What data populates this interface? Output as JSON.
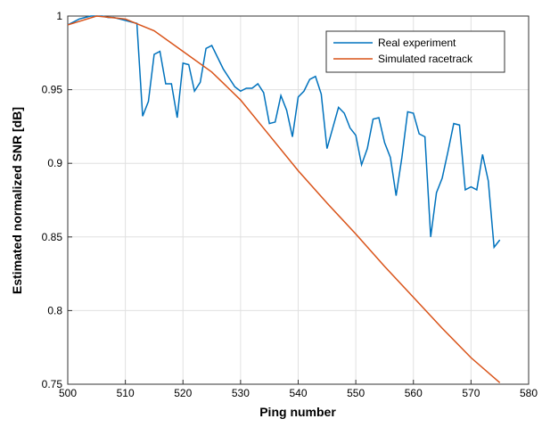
{
  "chart_data": {
    "type": "line",
    "xlabel": "Ping number",
    "ylabel": "Estimated normalized SNR [dB]",
    "xlim": [
      500,
      580
    ],
    "ylim": [
      0.75,
      1
    ],
    "xticks": [
      500,
      510,
      520,
      530,
      540,
      550,
      560,
      570,
      580
    ],
    "yticks": [
      0.75,
      0.8,
      0.85,
      0.9,
      0.95,
      1
    ],
    "grid": true,
    "legend": "upper right",
    "series": [
      {
        "name": "Real experiment",
        "color": "#0072bd",
        "x": [
          500,
          501,
          502,
          503,
          504,
          505,
          506,
          507,
          508,
          509,
          510,
          511,
          512,
          513,
          514,
          515,
          516,
          517,
          518,
          519,
          520,
          521,
          522,
          523,
          524,
          525,
          526,
          527,
          528,
          529,
          530,
          531,
          532,
          533,
          534,
          535,
          536,
          537,
          538,
          539,
          540,
          541,
          542,
          543,
          544,
          545,
          546,
          547,
          548,
          549,
          550,
          551,
          552,
          553,
          554,
          555,
          556,
          557,
          558,
          559,
          560,
          561,
          562,
          563,
          564,
          565,
          566,
          567,
          568,
          569,
          570,
          571,
          572,
          573,
          574,
          575
        ],
        "values": [
          0.994,
          0.996,
          0.998,
          0.999,
          1.0,
          1.0,
          1.0,
          0.999,
          0.999,
          0.998,
          0.997,
          0.996,
          0.995,
          0.932,
          0.942,
          0.974,
          0.976,
          0.954,
          0.954,
          0.931,
          0.968,
          0.967,
          0.949,
          0.955,
          0.978,
          0.98,
          0.972,
          0.964,
          0.958,
          0.952,
          0.949,
          0.951,
          0.951,
          0.954,
          0.948,
          0.927,
          0.928,
          0.946,
          0.936,
          0.918,
          0.945,
          0.949,
          0.957,
          0.959,
          0.947,
          0.91,
          0.924,
          0.938,
          0.934,
          0.924,
          0.919,
          0.899,
          0.91,
          0.93,
          0.931,
          0.914,
          0.904,
          0.878,
          0.904,
          0.935,
          0.934,
          0.92,
          0.918,
          0.85,
          0.88,
          0.89,
          0.908,
          0.927,
          0.926,
          0.882,
          0.884,
          0.882,
          0.906,
          0.888,
          0.843,
          0.848
        ]
      },
      {
        "name": "Simulated racetrack",
        "color": "#d95319",
        "x": [
          500,
          505,
          510,
          515,
          520,
          525,
          530,
          535,
          540,
          545,
          550,
          555,
          560,
          565,
          570,
          575
        ],
        "values": [
          0.994,
          1.0,
          0.998,
          0.99,
          0.976,
          0.962,
          0.943,
          0.919,
          0.895,
          0.873,
          0.852,
          0.83,
          0.809,
          0.788,
          0.768,
          0.751
        ]
      }
    ]
  }
}
